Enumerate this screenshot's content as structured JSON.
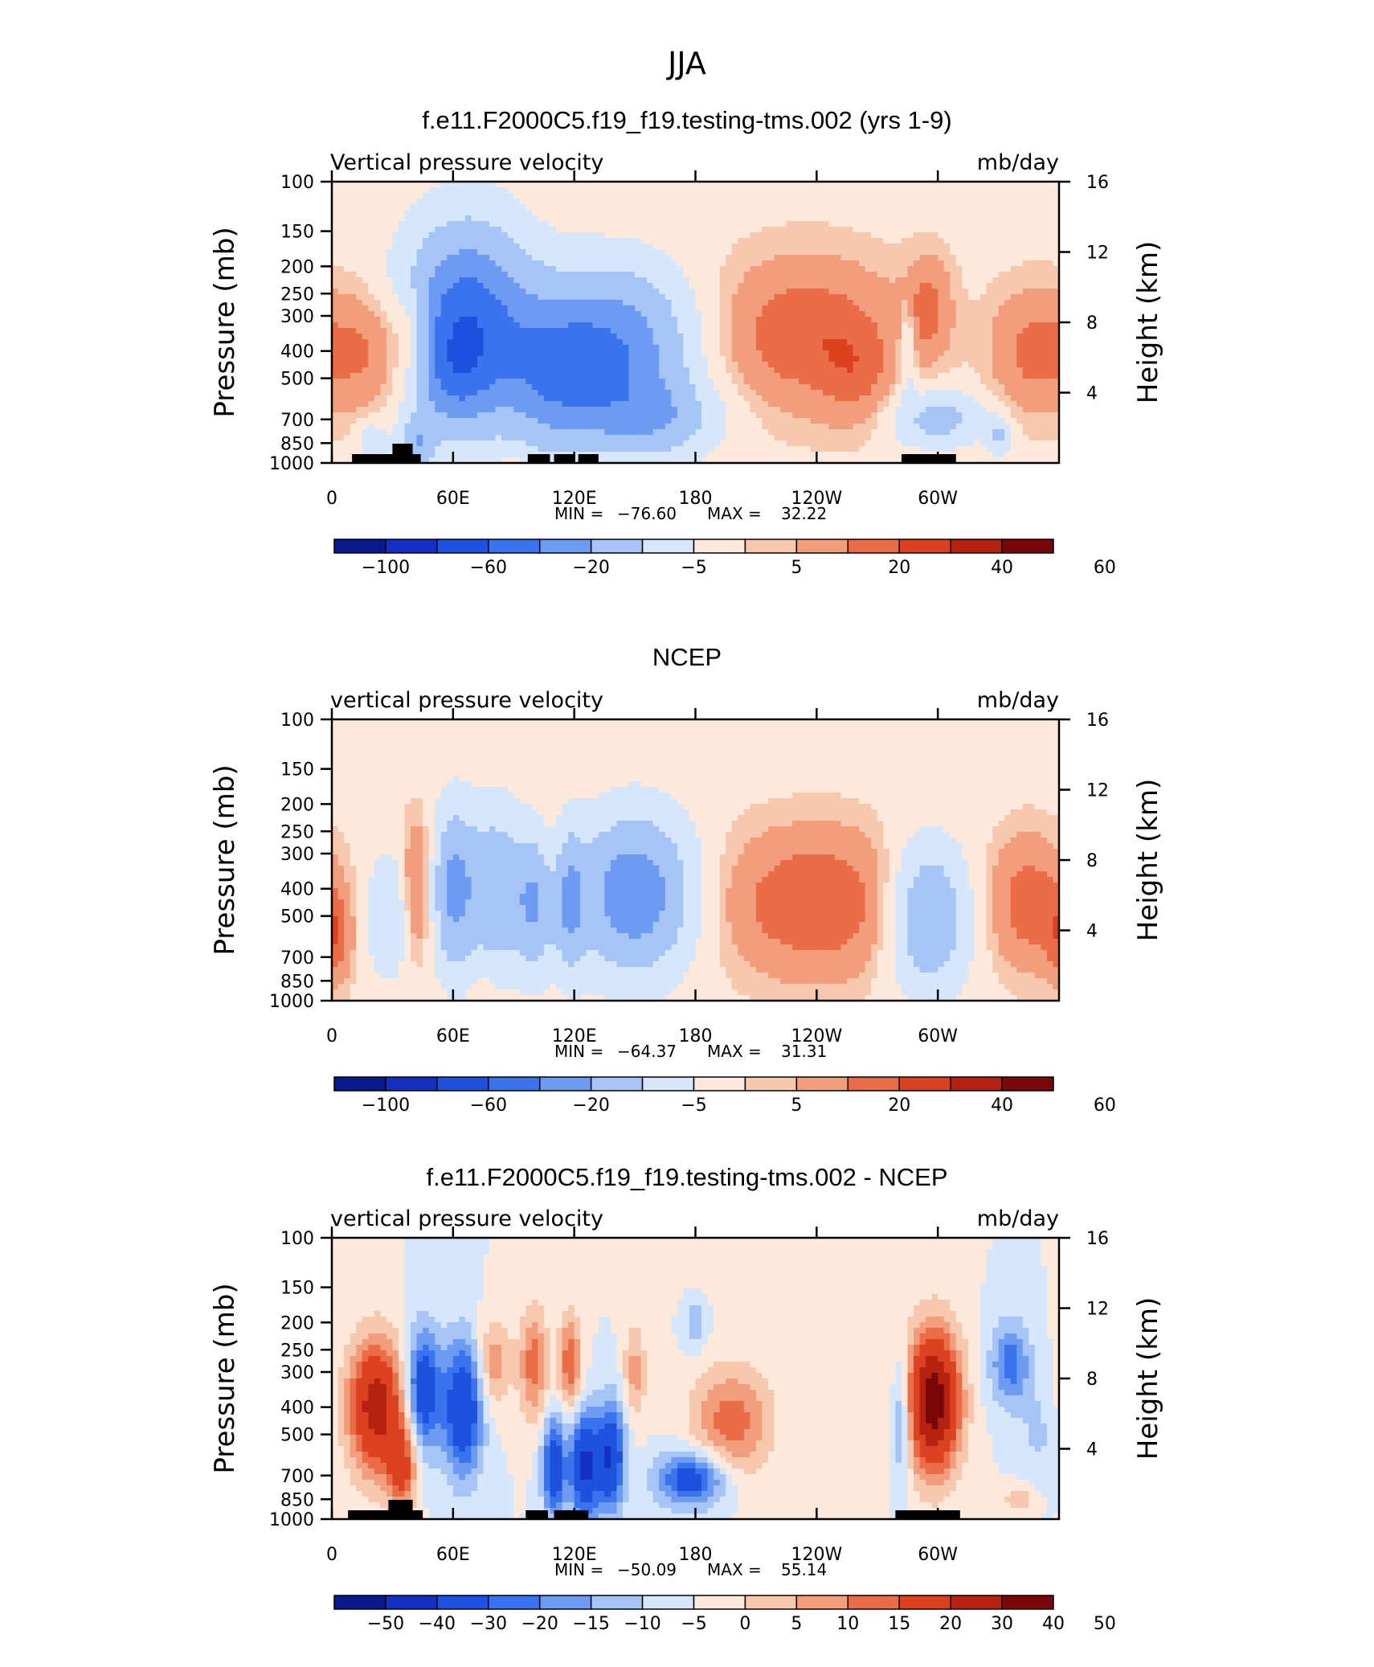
{
  "figure_title": "JJA",
  "colors": {
    "palette": [
      "#0a1a8c",
      "#1330c2",
      "#1d52de",
      "#3a73ee",
      "#6d9bf2",
      "#a7c4f7",
      "#d6e6fb",
      "#fde9dc",
      "#f8c8ae",
      "#f29d7c",
      "#eb6d48",
      "#dc4220",
      "#b5220f",
      "#7a0707"
    ]
  },
  "chart_data": [
    {
      "type": "heatmap",
      "panel_title": "f.e11.F2000C5.f19_f19.testing-tms.002 (yrs 1-9)",
      "left_label": "Vertical pressure velocity",
      "right_label": "mb/day",
      "ylabel_left": "Pressure (mb)",
      "ylabel_right": "Height (km)",
      "x_ticks": [
        "0",
        "60E",
        "120E",
        "180",
        "120W",
        "60W"
      ],
      "y_ticks": [
        "100",
        "150",
        "200",
        "250",
        "300",
        "400",
        "500",
        "700",
        "850",
        "1000"
      ],
      "y2_ticks": [
        "16",
        "12",
        "8",
        "4"
      ],
      "stats": {
        "min_label": "MIN =",
        "min": "−76.60",
        "max_label": "MAX =",
        "max": "32.22"
      },
      "colorbar_labels": [
        "−100",
        "−60",
        "−20",
        "−5",
        "5",
        "20",
        "40",
        "60"
      ],
      "blobs": [
        {
          "lon": 67,
          "p": 300,
          "w": 22,
          "h": 3.0,
          "v": -70
        },
        {
          "lon": 60,
          "p": 500,
          "w": 14,
          "h": 2.0,
          "v": -35
        },
        {
          "lon": 140,
          "p": 400,
          "w": 26,
          "h": 2.6,
          "v": -60
        },
        {
          "lon": 108,
          "p": 500,
          "w": 18,
          "h": 2.4,
          "v": -40
        },
        {
          "lon": 160,
          "p": 700,
          "w": 22,
          "h": 1.2,
          "v": -30
        },
        {
          "lon": 42,
          "p": 850,
          "w": 6,
          "h": 0.8,
          "v": -35
        },
        {
          "lon": 20,
          "p": 850,
          "w": 5,
          "h": 0.7,
          "v": -20
        },
        {
          "lon": 20,
          "p": 400,
          "w": 18,
          "h": 2.0,
          "v": 22
        },
        {
          "lon": 40,
          "p": 350,
          "w": 6,
          "h": 1.4,
          "v": 20
        },
        {
          "lon": 235,
          "p": 350,
          "w": 32,
          "h": 2.4,
          "v": 26
        },
        {
          "lon": 260,
          "p": 500,
          "w": 12,
          "h": 1.6,
          "v": 12
        },
        {
          "lon": 295,
          "p": 280,
          "w": 8,
          "h": 1.6,
          "v": 20
        },
        {
          "lon": 345,
          "p": 400,
          "w": 14,
          "h": 2.0,
          "v": 18
        },
        {
          "lon": 300,
          "p": 700,
          "w": 16,
          "h": 0.9,
          "v": -30
        },
        {
          "lon": 285,
          "p": 400,
          "w": 3,
          "h": 1.6,
          "v": -20
        },
        {
          "lon": 330,
          "p": 800,
          "w": 4,
          "h": 0.6,
          "v": -25
        },
        {
          "lon": 90,
          "p": 1000,
          "w": 8,
          "h": 0.3,
          "v": 6
        }
      ],
      "base": 2.5,
      "land": [
        [
          10,
          44
        ],
        [
          97,
          108
        ],
        [
          110,
          120
        ],
        [
          122,
          132
        ],
        [
          282,
          309
        ]
      ],
      "land_bumps": [
        [
          30,
          40
        ]
      ]
    },
    {
      "type": "heatmap",
      "panel_title": "NCEP",
      "left_label": "vertical pressure velocity",
      "right_label": "mb/day",
      "ylabel_left": "Pressure (mb)",
      "ylabel_right": "Height (km)",
      "x_ticks": [
        "0",
        "60E",
        "120E",
        "180",
        "120W",
        "60W"
      ],
      "y_ticks": [
        "100",
        "150",
        "200",
        "250",
        "300",
        "400",
        "500",
        "700",
        "850",
        "1000"
      ],
      "y2_ticks": [
        "16",
        "12",
        "8",
        "4"
      ],
      "stats": {
        "min_label": "MIN =",
        "min": "−64.37",
        "max_label": "MAX =",
        "max": "31.31"
      },
      "colorbar_labels": [
        "−100",
        "−60",
        "−20",
        "−5",
        "5",
        "20",
        "40",
        "60"
      ],
      "blobs": [
        {
          "lon": 60,
          "p": 400,
          "w": 7,
          "h": 2.6,
          "v": -45
        },
        {
          "lon": 80,
          "p": 400,
          "w": 10,
          "h": 2.6,
          "v": -38
        },
        {
          "lon": 100,
          "p": 450,
          "w": 7,
          "h": 2.2,
          "v": -38
        },
        {
          "lon": 118,
          "p": 450,
          "w": 5,
          "h": 2.2,
          "v": -36
        },
        {
          "lon": 150,
          "p": 420,
          "w": 20,
          "h": 2.5,
          "v": -58
        },
        {
          "lon": 28,
          "p": 500,
          "w": 8,
          "h": 2.0,
          "v": -22
        },
        {
          "lon": 295,
          "p": 500,
          "w": 14,
          "h": 2.4,
          "v": -45
        },
        {
          "lon": 42,
          "p": 400,
          "w": 5,
          "h": 2.2,
          "v": 24
        },
        {
          "lon": 240,
          "p": 450,
          "w": 34,
          "h": 2.4,
          "v": 28
        },
        {
          "lon": 345,
          "p": 450,
          "w": 14,
          "h": 2.2,
          "v": 24
        },
        {
          "lon": 2,
          "p": 600,
          "w": 6,
          "h": 1.5,
          "v": 20
        },
        {
          "lon": 108,
          "p": 300,
          "w": 4,
          "h": 1.2,
          "v": 6
        },
        {
          "lon": 75,
          "p": 900,
          "w": 4,
          "h": 0.5,
          "v": 6
        }
      ],
      "base": 2.0,
      "land": [],
      "land_bumps": []
    },
    {
      "type": "heatmap",
      "panel_title": "f.e11.F2000C5.f19_f19.testing-tms.002 - NCEP",
      "left_label": "vertical pressure velocity",
      "right_label": "mb/day",
      "ylabel_left": "Pressure (mb)",
      "ylabel_right": "Height (km)",
      "x_ticks": [
        "0",
        "60E",
        "120E",
        "180",
        "120W",
        "60W"
      ],
      "y_ticks": [
        "100",
        "150",
        "200",
        "250",
        "300",
        "400",
        "500",
        "700",
        "850",
        "1000"
      ],
      "y2_ticks": [
        "16",
        "12",
        "8",
        "4"
      ],
      "stats": {
        "min_label": "MIN =",
        "min": "−50.09",
        "max_label": "MAX =",
        "max": "55.14"
      },
      "colorbar_labels": [
        "−50",
        "−40",
        "−30",
        "−20",
        "−15",
        "−10",
        "−5",
        "0",
        "5",
        "10",
        "15",
        "20",
        "30",
        "40",
        "50"
      ],
      "blobs": [
        {
          "lon": 22,
          "p": 400,
          "w": 10,
          "h": 2.2,
          "v": 35
        },
        {
          "lon": 35,
          "p": 650,
          "w": 5,
          "h": 1.4,
          "v": 22
        },
        {
          "lon": 45,
          "p": 350,
          "w": 6,
          "h": 2.0,
          "v": -28
        },
        {
          "lon": 65,
          "p": 400,
          "w": 7,
          "h": 2.2,
          "v": -30
        },
        {
          "lon": 80,
          "p": 280,
          "w": 6,
          "h": 1.5,
          "v": 14
        },
        {
          "lon": 100,
          "p": 280,
          "w": 5,
          "h": 1.8,
          "v": 18
        },
        {
          "lon": 110,
          "p": 650,
          "w": 4,
          "h": 1.6,
          "v": -28
        },
        {
          "lon": 118,
          "p": 280,
          "w": 4,
          "h": 1.6,
          "v": 20
        },
        {
          "lon": 125,
          "p": 650,
          "w": 5,
          "h": 1.8,
          "v": -32
        },
        {
          "lon": 138,
          "p": 600,
          "w": 5,
          "h": 1.8,
          "v": -30
        },
        {
          "lon": 150,
          "p": 300,
          "w": 4,
          "h": 1.6,
          "v": 12
        },
        {
          "lon": 178,
          "p": 720,
          "w": 12,
          "h": 0.9,
          "v": -26
        },
        {
          "lon": 198,
          "p": 450,
          "w": 14,
          "h": 1.8,
          "v": 18
        },
        {
          "lon": 180,
          "p": 200,
          "w": 4,
          "h": 0.8,
          "v": -10
        },
        {
          "lon": 298,
          "p": 380,
          "w": 9,
          "h": 2.3,
          "v": 46
        },
        {
          "lon": 282,
          "p": 450,
          "w": 3,
          "h": 2.0,
          "v": -15
        },
        {
          "lon": 336,
          "p": 280,
          "w": 7,
          "h": 1.4,
          "v": -18
        },
        {
          "lon": 350,
          "p": 500,
          "w": 7,
          "h": 1.6,
          "v": -6
        },
        {
          "lon": 215,
          "p": 150,
          "w": 30,
          "h": 1.0,
          "v": 2
        },
        {
          "lon": 340,
          "p": 850,
          "w": 6,
          "h": 0.5,
          "v": 8
        }
      ],
      "base": 0.0,
      "land": [
        [
          8,
          45
        ],
        [
          96,
          107
        ],
        [
          110,
          127
        ],
        [
          279,
          311
        ]
      ],
      "land_bumps": [
        [
          28,
          40
        ]
      ]
    }
  ]
}
